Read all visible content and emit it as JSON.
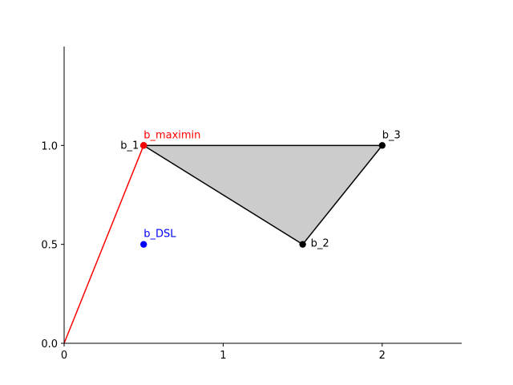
{
  "chart_data": {
    "type": "scatter",
    "xlim": [
      0,
      2.5
    ],
    "ylim": [
      0,
      1.5
    ],
    "x_ticks": [
      {
        "value": 0,
        "label": "0"
      },
      {
        "value": 1,
        "label": "1"
      },
      {
        "value": 2,
        "label": "2"
      }
    ],
    "y_ticks": [
      {
        "value": 0,
        "label": "0.0"
      },
      {
        "value": 0.5,
        "label": "0.5"
      },
      {
        "value": 1,
        "label": "1.0"
      }
    ],
    "grid": false,
    "polygon": {
      "vertices": [
        [
          0.5,
          1.0
        ],
        [
          1.5,
          0.5
        ],
        [
          2.0,
          1.0
        ]
      ],
      "fill": "#cccccc",
      "edge": "#000000"
    },
    "line": {
      "points": [
        [
          0,
          0
        ],
        [
          0.5,
          1.0
        ]
      ],
      "color": "#ff0000"
    },
    "points": [
      {
        "id": "b1",
        "label": "b_1",
        "x": 0.5,
        "y": 1.0,
        "color": "#000000"
      },
      {
        "id": "b2",
        "label": "b_2",
        "x": 1.5,
        "y": 0.5,
        "color": "#000000"
      },
      {
        "id": "b3",
        "label": "b_3",
        "x": 2.0,
        "y": 1.0,
        "color": "#000000"
      },
      {
        "id": "bmaximin",
        "label": "b_maximin",
        "x": 0.5,
        "y": 1.0,
        "color": "#ff0000"
      },
      {
        "id": "bdsl",
        "label": "b_DSL",
        "x": 0.5,
        "y": 0.5,
        "color": "#0000ff"
      }
    ]
  }
}
